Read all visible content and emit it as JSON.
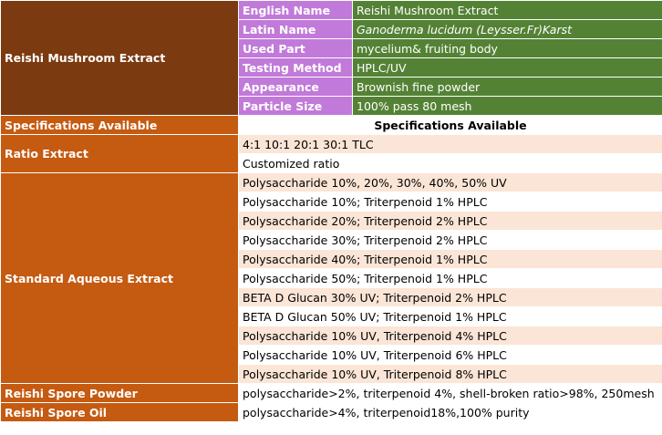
{
  "product": {
    "title": "Reishi Mushroom Extract",
    "attributes": [
      {
        "label": "English Name",
        "value": "Reishi Mushroom Extract",
        "italic": false
      },
      {
        "label": "Latin Name",
        "value": "Ganoderma lucidum (Leysser.Fr)Karst",
        "italic": true
      },
      {
        "label": "Used Part",
        "value": "mycelium& fruiting body",
        "italic": false
      },
      {
        "label": "Testing Method",
        "value": "HPLC/UV",
        "italic": false
      },
      {
        "label": "Appearance",
        "value": "Brownish fine powder",
        "italic": false
      },
      {
        "label": "Particle Size",
        "value": "100% pass 80 mesh",
        "italic": false
      }
    ]
  },
  "specs_header": {
    "label": "Specifications Available",
    "value": "Specifications Available"
  },
  "sections": [
    {
      "label": "Ratio Extract",
      "rows": [
        "4:1  10:1  20:1 30:1 TLC",
        "Customized ratio"
      ]
    },
    {
      "label": "Standard Aqueous Extract",
      "rows": [
        "Polysaccharide 10%, 20%, 30%, 40%, 50% UV",
        "Polysaccharide 10%; Triterpenoid 1% HPLC",
        "Polysaccharide 20%; Triterpenoid 2% HPLC",
        "Polysaccharide 30%; Triterpenoid 2% HPLC",
        "Polysaccharide 40%; Triterpenoid 1% HPLC",
        "Polysaccharide 50%; Triterpenoid 1% HPLC",
        "BETA D Glucan 30% UV; Triterpenoid 2% HPLC",
        "BETA D Glucan 50% UV; Triterpenoid 1% HPLC",
        "Polysaccharide 10% UV, Triterpenoid 4% HPLC",
        "Polysaccharide 10% UV, Triterpenoid 6% HPLC",
        "Polysaccharide 10% UV, Triterpenoid 8% HPLC"
      ]
    },
    {
      "label": "Reishi  Spore Powder",
      "rows": [
        "polysaccharide>2%, triterpenoid 4%, shell-broken ratio>98%, 250mesh"
      ]
    },
    {
      "label": "Reishi Spore Oil",
      "rows": [
        "polysaccharide>4%, triterpenoid18%,100% purity"
      ]
    }
  ],
  "colors": {
    "header_brown": "#7b3a10",
    "header_orange": "#c55a11",
    "label_purple": "#c17ad9",
    "value_green": "#548235",
    "value_peach": "#fbe5d6"
  }
}
